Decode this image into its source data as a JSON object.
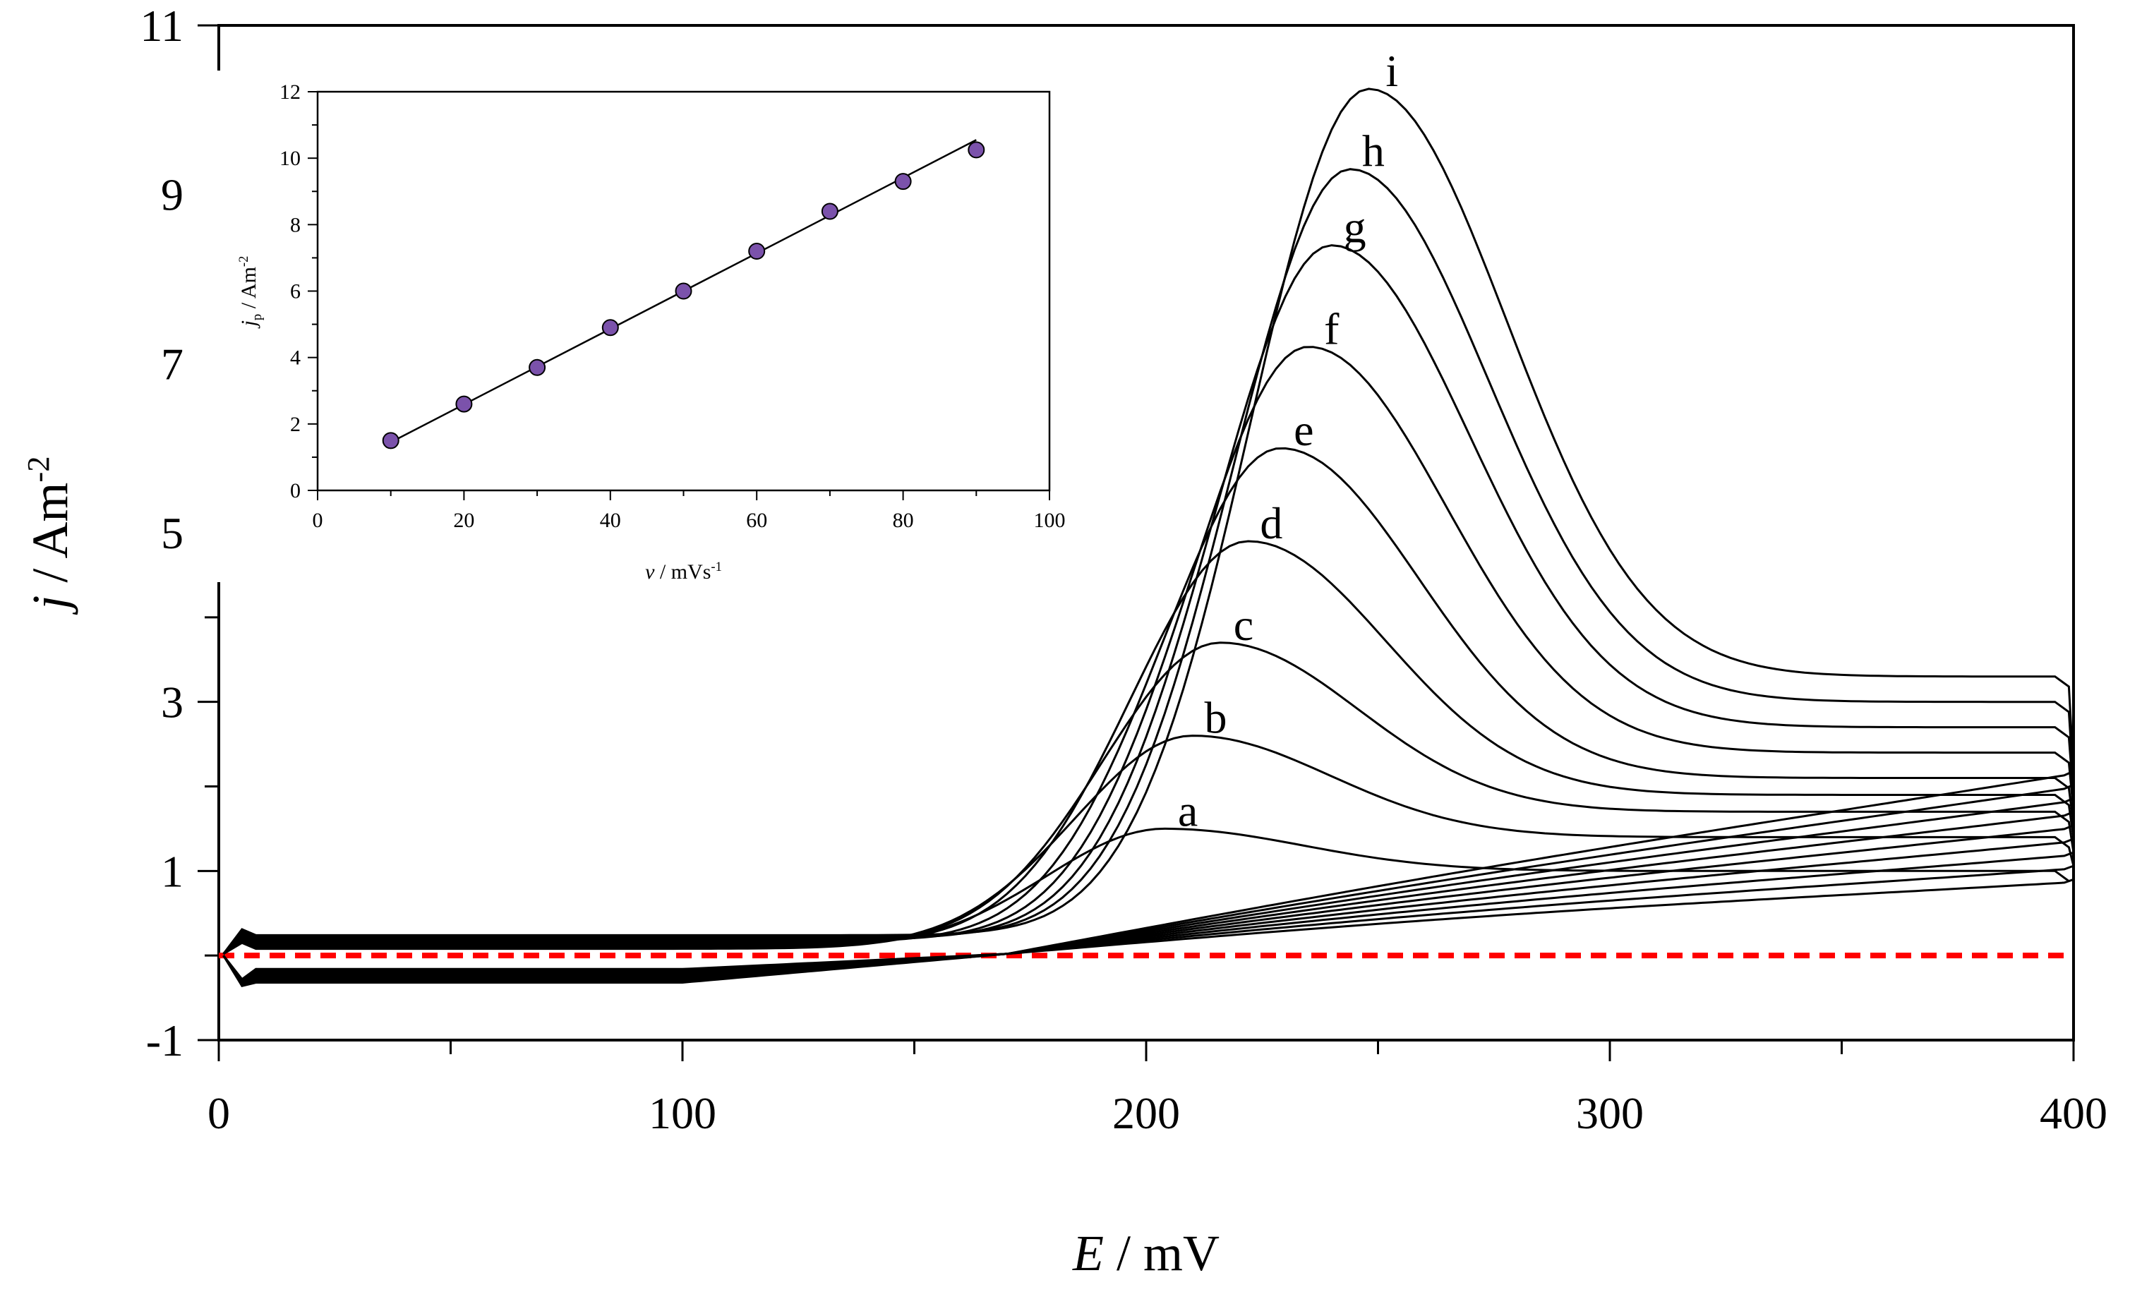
{
  "chart_data": [
    {
      "id": "main",
      "type": "line",
      "title": "",
      "xlabel": {
        "var": "E",
        "unit": " / mV"
      },
      "ylabel": {
        "var": "j",
        "unit": " / Am",
        "sup": "-2"
      },
      "xlim": [
        0,
        400
      ],
      "ylim": [
        -1,
        11
      ],
      "xticks": [
        0,
        100,
        200,
        300,
        400
      ],
      "xtick_labels": [
        "0",
        "100",
        "200",
        "300",
        "400"
      ],
      "yticks": [
        -1,
        1,
        3,
        5,
        7,
        9,
        11
      ],
      "ytick_labels": [
        "-1",
        "1",
        "3",
        "5",
        "7",
        "9",
        "11"
      ],
      "grid": false,
      "baseline": {
        "y": 0,
        "color": "#ff0000",
        "style": "dashed"
      },
      "curve_color": "#000000",
      "series": [
        {
          "name": "a",
          "peak_E": 204,
          "peak_j": 1.5,
          "end_forward_j": 1.0
        },
        {
          "name": "b",
          "peak_E": 210,
          "peak_j": 2.6,
          "end_forward_j": 1.4
        },
        {
          "name": "c",
          "peak_E": 216,
          "peak_j": 3.7,
          "end_forward_j": 1.7
        },
        {
          "name": "d",
          "peak_E": 222,
          "peak_j": 4.9,
          "end_forward_j": 1.9
        },
        {
          "name": "e",
          "peak_E": 229,
          "peak_j": 6.0,
          "end_forward_j": 2.1
        },
        {
          "name": "f",
          "peak_E": 235,
          "peak_j": 7.2,
          "end_forward_j": 2.4
        },
        {
          "name": "g",
          "peak_E": 240,
          "peak_j": 8.4,
          "end_forward_j": 2.7
        },
        {
          "name": "h",
          "peak_E": 244,
          "peak_j": 9.3,
          "end_forward_j": 3.0
        },
        {
          "name": "i",
          "peak_E": 248,
          "peak_j": 10.25,
          "end_forward_j": 3.3
        }
      ]
    },
    {
      "id": "inset",
      "type": "scatter",
      "title": "",
      "xlabel": {
        "var": "v",
        "unit": " / mVs",
        "sup": "-1"
      },
      "ylabel": {
        "var": "j",
        "sub": "p",
        "unit": " / Am",
        "sup": "-2"
      },
      "xlim": [
        0,
        100
      ],
      "ylim": [
        0,
        12
      ],
      "xticks": [
        0,
        20,
        40,
        60,
        80,
        100
      ],
      "xtick_labels": [
        "0",
        "20",
        "40",
        "60",
        "80",
        "100"
      ],
      "yticks": [
        0,
        2,
        4,
        6,
        8,
        10,
        12
      ],
      "ytick_labels": [
        "0",
        "2",
        "4",
        "6",
        "8",
        "10",
        "12"
      ],
      "marker_color": "#7b52ab",
      "points": {
        "x": [
          10,
          20,
          30,
          40,
          50,
          60,
          70,
          80,
          90
        ],
        "y": [
          1.5,
          2.6,
          3.7,
          4.9,
          6.0,
          7.2,
          8.4,
          9.3,
          10.25
        ]
      },
      "fit_line": {
        "x": [
          10,
          90
        ],
        "y": [
          1.45,
          10.55
        ]
      }
    }
  ]
}
